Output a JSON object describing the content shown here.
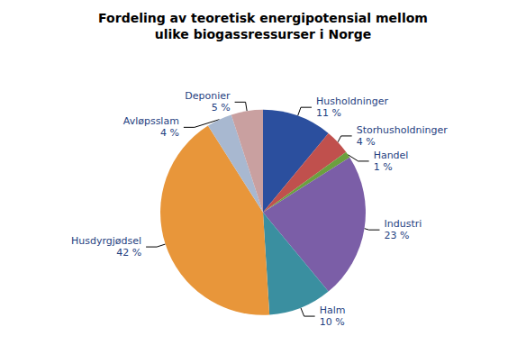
{
  "chart_data": {
    "type": "pie",
    "title": "Fordeling av teoretisk energipotensial mellom\nulike biogassressurser i Norge",
    "categories": [
      "Husholdninger",
      "Storhusholdninger",
      "Handel",
      "Industri",
      "Halm",
      "Husdyrgjødsel",
      "Avløpsslam",
      "Deponier"
    ],
    "values": [
      11,
      4,
      1,
      23,
      10,
      42,
      4,
      5
    ],
    "value_labels": [
      "11 %",
      "4 %",
      "1 %",
      "23 %",
      "10 %",
      "42 %",
      "4 %",
      "5 %"
    ],
    "colors": [
      "#2B4F9E",
      "#C0504D",
      "#6BA03E",
      "#7B5EA7",
      "#3A8FA0",
      "#E8963A",
      "#A8B8D0",
      "#C9A0A0"
    ],
    "legend": false
  }
}
